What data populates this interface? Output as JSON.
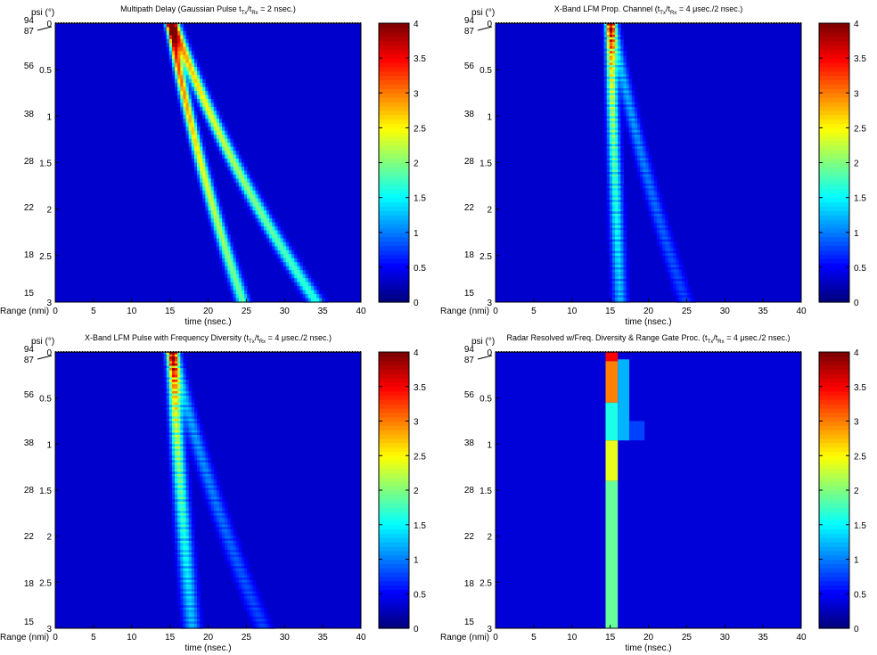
{
  "colorbar_ticks": [
    "0",
    "0.5",
    "1",
    "1.5",
    "2",
    "2.5",
    "3",
    "3.5",
    "4"
  ],
  "chart_data": [
    {
      "type": "heatmap",
      "title_parts": [
        "Multipath Delay (Gaussian Pulse t",
        "Tx",
        "/t",
        "Rx",
        " = 2 nsec.)"
      ],
      "xlabel": "time (nsec.)",
      "range_label": "Range (nmi)",
      "psi_label": "psi (°)",
      "xlim": [
        0,
        40
      ],
      "ylim": [
        0,
        3
      ],
      "colorbar_range": [
        0,
        4
      ],
      "x_ticks": [
        "0",
        "5",
        "10",
        "15",
        "20",
        "25",
        "30",
        "35",
        "40"
      ],
      "y_ticks": [
        "0",
        "0.5",
        "1",
        "1.5",
        "2",
        "2.5",
        "3"
      ],
      "range_ticks": [
        "94",
        "87",
        "56",
        "38",
        "28",
        "22",
        "18",
        "15"
      ],
      "style": "smooth",
      "paths": [
        {
          "x0": 15.0,
          "slope": 2.2,
          "width": 0.55,
          "amp_top": 4.0,
          "amp_bot": 1.6,
          "decay": 0.45
        },
        {
          "x0": 15.6,
          "slope": 4.3,
          "width": 0.7,
          "amp_top": 2.2,
          "amp_bot": 0.8,
          "decay": 0.5
        },
        {
          "x0": 15.3,
          "slope": 4.3,
          "width": 0.6,
          "amp_top": 1.2,
          "amp_bot": 0.6,
          "decay": 0.5
        }
      ]
    },
    {
      "type": "heatmap",
      "title_parts": [
        "X-Band LFM Prop. Channel (t",
        "Tx",
        "/t",
        "Rx",
        " = 4 μsec./2 nsec.)"
      ],
      "xlabel": "time (nsec.)",
      "range_label": "",
      "psi_label": "psi (°)",
      "xlim": [
        0,
        40
      ],
      "ylim": [
        0,
        3
      ],
      "colorbar_range": [
        0,
        4
      ],
      "x_ticks": [
        "0",
        "5",
        "10",
        "15",
        "20",
        "25",
        "30",
        "35",
        "40"
      ],
      "y_ticks": [
        "0",
        "0.5",
        "1",
        "1.5",
        "2",
        "2.5",
        "3"
      ],
      "range_ticks": [
        "94",
        "87",
        "56",
        "38",
        "28",
        "22",
        "18",
        "15"
      ],
      "style": "striped",
      "paths": [
        {
          "x0": 15.0,
          "slope": 0.3,
          "width": 0.6,
          "amp_top": 3.6,
          "amp_bot": 1.0,
          "decay": 0.5
        },
        {
          "x0": 15.3,
          "slope": 2.2,
          "width": 0.7,
          "amp_top": 1.4,
          "amp_bot": 0.5,
          "decay": 0.55
        }
      ]
    },
    {
      "type": "heatmap",
      "title_parts": [
        "X-Band LFM Pulse with Frequency Diversity (t",
        "Tx",
        "/t",
        "Rx",
        " = 4 μsec./2 nsec.)"
      ],
      "xlabel": "time (nsec.)",
      "range_label": "Range (nmi)",
      "psi_label": "psi (°)",
      "xlim": [
        0,
        40
      ],
      "ylim": [
        0,
        3
      ],
      "colorbar_range": [
        0,
        4
      ],
      "x_ticks": [
        "0",
        "5",
        "10",
        "15",
        "20",
        "25",
        "30",
        "35",
        "40"
      ],
      "y_ticks": [
        "0",
        "0.5",
        "1",
        "1.5",
        "2",
        "2.5",
        "3"
      ],
      "range_ticks": [
        "94",
        "87",
        "56",
        "38",
        "28",
        "22",
        "18",
        "15"
      ],
      "style": "striped",
      "paths": [
        {
          "x0": 15.3,
          "slope": 0.6,
          "width": 0.7,
          "amp_top": 3.7,
          "amp_bot": 1.0,
          "decay": 0.5
        },
        {
          "x0": 15.5,
          "slope": 2.7,
          "width": 0.8,
          "amp_top": 1.3,
          "amp_bot": 0.5,
          "decay": 0.6
        }
      ]
    },
    {
      "type": "heatmap",
      "title_parts": [
        "Radar Resolved w/Freq. Diversity & Range Gate Proc. (t",
        "Tx",
        "/t",
        "Rx",
        " = 4 μsec./2 nsec.)"
      ],
      "xlabel": "time (nsec.)",
      "range_label": "Range (nmi)",
      "psi_label": "psi (°)",
      "xlim": [
        0,
        40
      ],
      "ylim": [
        0,
        3
      ],
      "colorbar_range": [
        0,
        4
      ],
      "x_ticks": [
        "0",
        "5",
        "10",
        "15",
        "20",
        "25",
        "30",
        "35",
        "40"
      ],
      "y_ticks": [
        "0",
        "0.5",
        "1",
        "1.5",
        "2",
        "2.5",
        "3"
      ],
      "range_ticks": [
        "94",
        "87",
        "56",
        "38",
        "28",
        "22",
        "18",
        "15"
      ],
      "style": "gated",
      "background": 0.35,
      "blocks": [
        {
          "x": [
            14.4,
            16.0
          ],
          "y": [
            0.0,
            0.1
          ],
          "v": 3.5
        },
        {
          "x": [
            14.4,
            16.0
          ],
          "y": [
            0.1,
            0.55
          ],
          "v": 3.0
        },
        {
          "x": [
            14.4,
            16.0
          ],
          "y": [
            0.55,
            0.96
          ],
          "v": 1.6
        },
        {
          "x": [
            16.0,
            17.5
          ],
          "y": [
            0.08,
            0.96
          ],
          "v": 1.2
        },
        {
          "x": [
            17.5,
            19.5
          ],
          "y": [
            0.75,
            0.96
          ],
          "v": 0.75
        },
        {
          "x": [
            14.4,
            16.0
          ],
          "y": [
            0.96,
            1.4
          ],
          "v": 2.4
        },
        {
          "x": [
            14.4,
            16.0
          ],
          "y": [
            1.4,
            3.0
          ],
          "v": 1.9
        }
      ]
    }
  ]
}
